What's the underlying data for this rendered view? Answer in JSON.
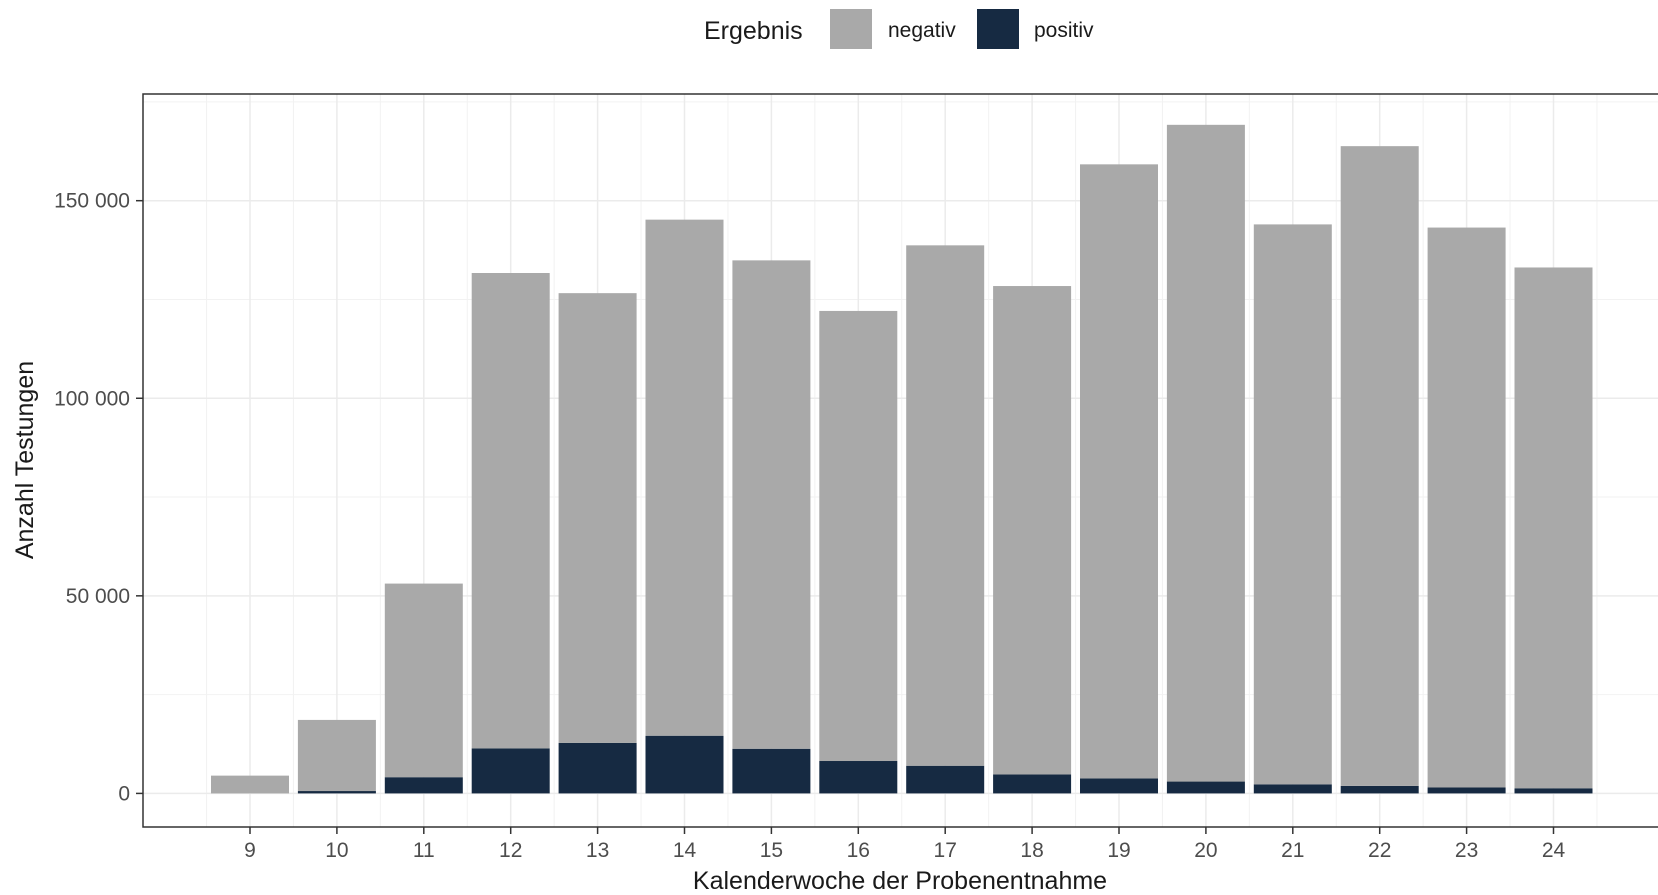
{
  "chart_data": {
    "type": "bar",
    "stacked": true,
    "title": "",
    "xlabel": "Kalenderwoche der Probenentnahme",
    "ylabel": "Anzahl Testungen",
    "categories": [
      "9",
      "10",
      "11",
      "12",
      "13",
      "14",
      "15",
      "16",
      "17",
      "18",
      "19",
      "20",
      "21",
      "22",
      "23",
      "24"
    ],
    "series": [
      {
        "name": "negativ",
        "color": "#a9a9a9",
        "values": [
          4500,
          18000,
          49000,
          120300,
          113800,
          130600,
          123600,
          113900,
          131700,
          123600,
          155400,
          166200,
          141700,
          161900,
          141700,
          131800
        ]
      },
      {
        "name": "positiv",
        "color": "#162a42",
        "values": [
          0,
          600,
          4100,
          11400,
          12800,
          14600,
          11300,
          8200,
          7000,
          4800,
          3800,
          3000,
          2300,
          1900,
          1500,
          1300
        ]
      }
    ],
    "ylim": [
      -8500,
      177000
    ],
    "yticks": [
      0,
      50000,
      100000,
      150000
    ],
    "ytick_labels": [
      "0",
      "50 000",
      "100 000",
      "150 000"
    ],
    "grid": true,
    "legend": {
      "title": "Ergebnis",
      "position": "top",
      "entries": [
        "negativ",
        "positiv"
      ]
    }
  }
}
